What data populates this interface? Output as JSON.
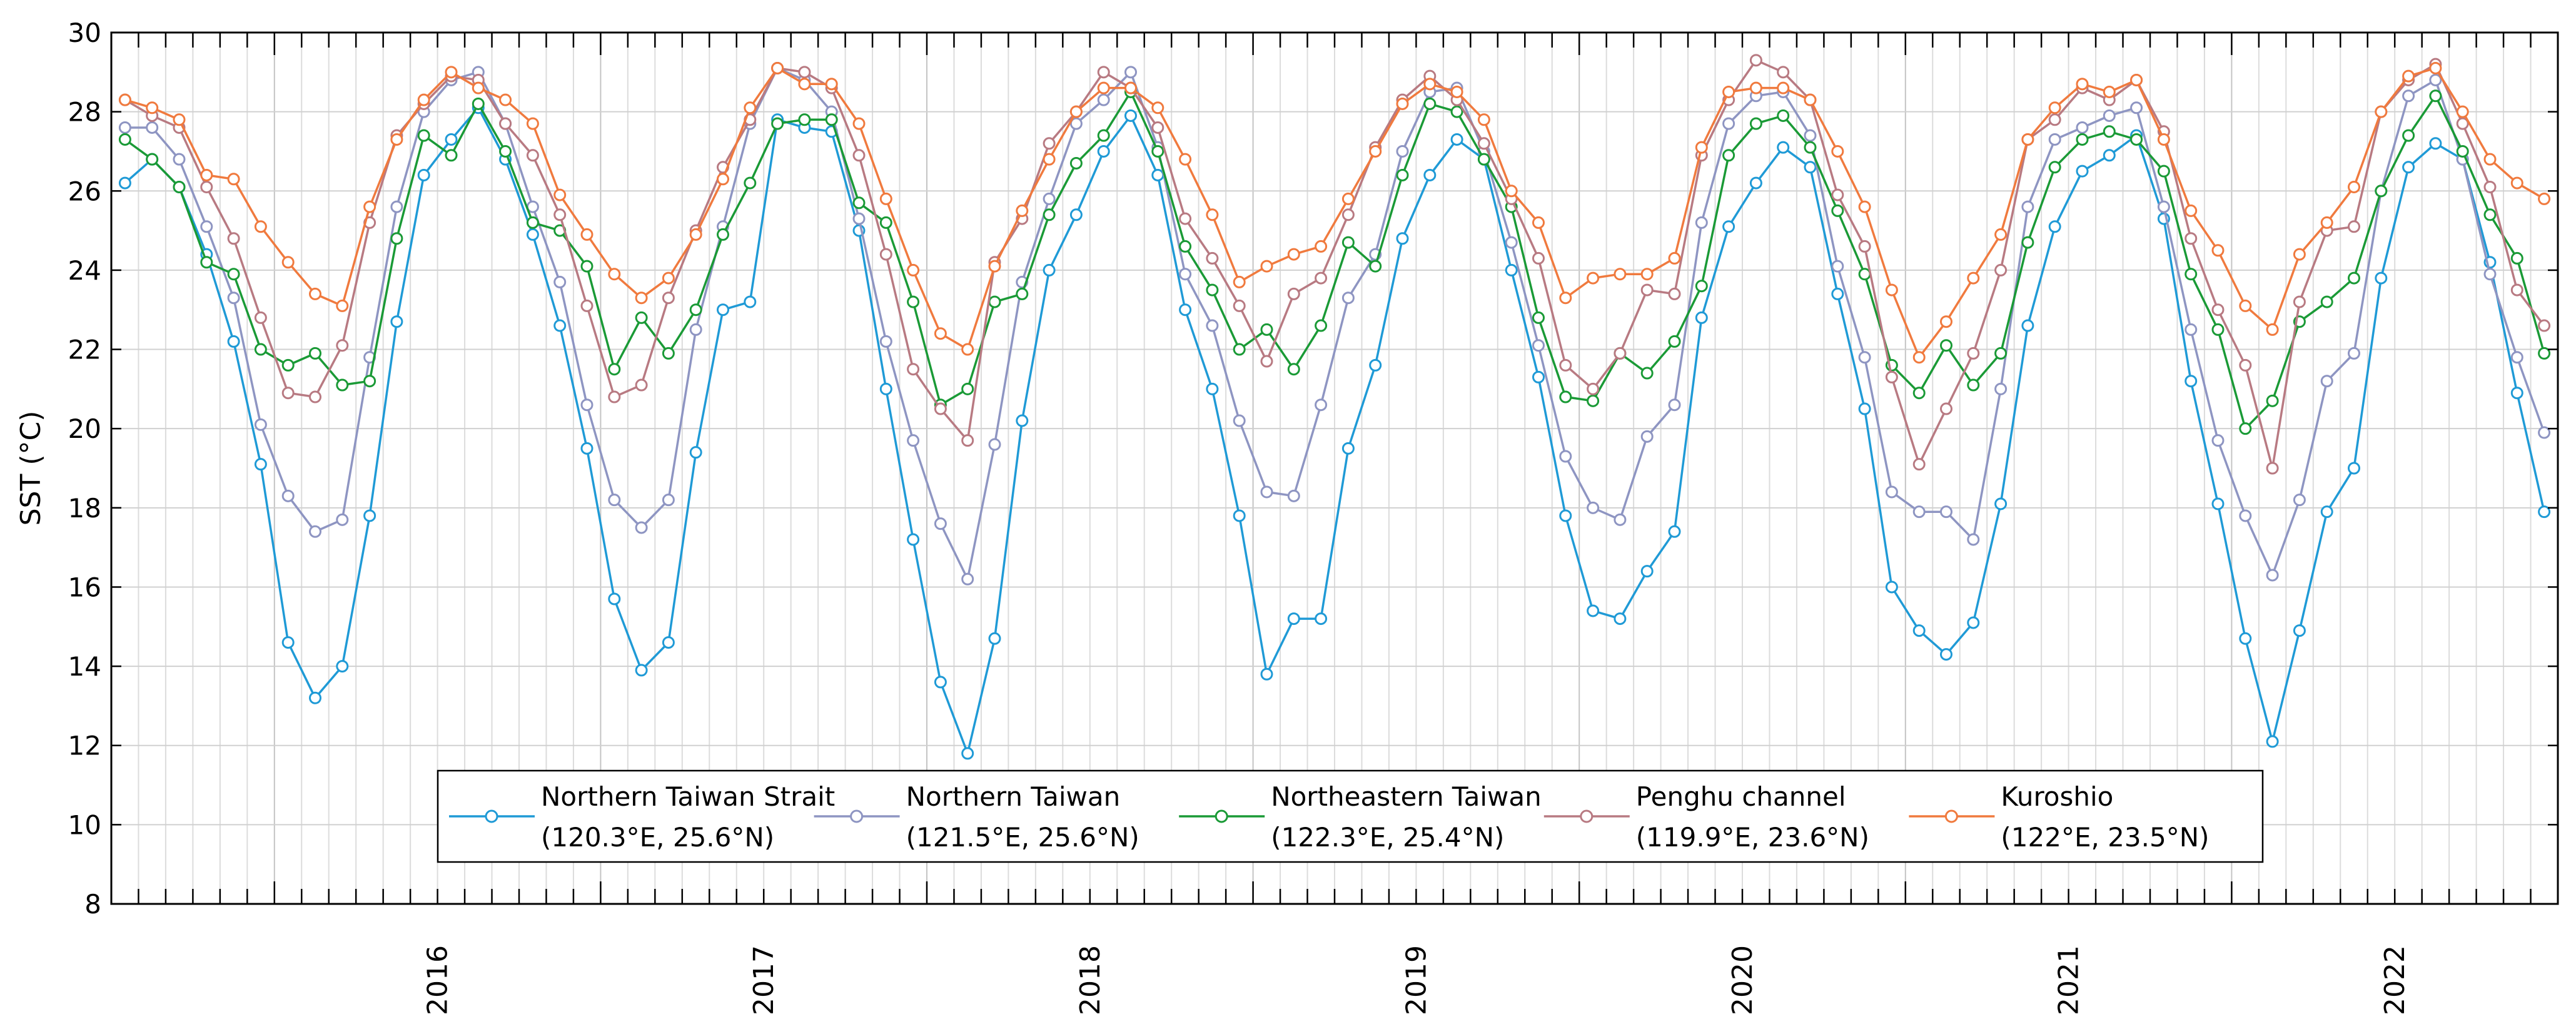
{
  "chart_data": {
    "type": "line",
    "title": "",
    "xlabel": "",
    "ylabel": "SST (°C)",
    "ylim": [
      8,
      30
    ],
    "yticks": [
      8,
      10,
      12,
      14,
      16,
      18,
      20,
      22,
      24,
      26,
      28,
      30
    ],
    "xlim": [
      2015.5,
      2023.0
    ],
    "year_labels": [
      "2016",
      "2017",
      "2018",
      "2019",
      "2020",
      "2021",
      "2022"
    ],
    "grid": true,
    "legend_position": "lower-center",
    "x": [
      2015.542,
      2015.625,
      2015.708,
      2015.792,
      2015.875,
      2015.958,
      2016.042,
      2016.125,
      2016.208,
      2016.292,
      2016.375,
      2016.458,
      2016.542,
      2016.625,
      2016.708,
      2016.792,
      2016.875,
      2016.958,
      2017.042,
      2017.125,
      2017.208,
      2017.292,
      2017.375,
      2017.458,
      2017.542,
      2017.625,
      2017.708,
      2017.792,
      2017.875,
      2017.958,
      2018.042,
      2018.125,
      2018.208,
      2018.292,
      2018.375,
      2018.458,
      2018.542,
      2018.625,
      2018.708,
      2018.792,
      2018.875,
      2018.958,
      2019.042,
      2019.125,
      2019.208,
      2019.292,
      2019.375,
      2019.458,
      2019.542,
      2019.625,
      2019.708,
      2019.792,
      2019.875,
      2019.958,
      2020.042,
      2020.125,
      2020.208,
      2020.292,
      2020.375,
      2020.458,
      2020.542,
      2020.625,
      2020.708,
      2020.792,
      2020.875,
      2020.958,
      2021.042,
      2021.125,
      2021.208,
      2021.292,
      2021.375,
      2021.458,
      2021.542,
      2021.625,
      2021.708,
      2021.792,
      2021.875,
      2021.958,
      2022.042,
      2022.125,
      2022.208,
      2022.292,
      2022.375,
      2022.458,
      2022.542,
      2022.625,
      2022.708,
      2022.792,
      2022.875,
      2022.958
    ],
    "series": [
      {
        "name": "Northern Taiwan Strait",
        "location": "(120.3°E, 25.6°N)",
        "color": "#1f9ad6",
        "values": [
          26.2,
          26.8,
          26.1,
          24.4,
          22.2,
          19.1,
          14.6,
          13.2,
          14.0,
          17.8,
          22.7,
          26.4,
          27.3,
          28.1,
          26.8,
          24.9,
          22.6,
          19.5,
          15.7,
          13.9,
          14.6,
          19.4,
          23.0,
          23.2,
          27.8,
          27.6,
          27.5,
          25.0,
          21.0,
          17.2,
          13.6,
          11.8,
          14.7,
          20.2,
          24.0,
          25.4,
          27.0,
          27.9,
          26.4,
          23.0,
          21.0,
          17.8,
          13.8,
          15.2,
          15.2,
          19.5,
          21.6,
          24.8,
          26.4,
          27.3,
          26.8,
          24.0,
          21.3,
          17.8,
          15.4,
          15.2,
          16.4,
          17.4,
          22.8,
          25.1,
          26.2,
          27.1,
          26.6,
          23.4,
          20.5,
          16.0,
          14.9,
          14.3,
          15.1,
          18.1,
          22.6,
          25.1,
          26.5,
          26.9,
          27.4,
          25.3,
          21.2,
          18.1,
          14.7,
          12.1,
          14.9,
          17.9,
          19.0,
          23.8,
          26.6,
          27.2,
          26.8,
          24.2,
          20.9,
          17.9
        ]
      },
      {
        "name": "Northern Taiwan",
        "location": "(121.5°E, 25.6°N)",
        "color": "#8e95c2",
        "values": [
          27.6,
          27.6,
          26.8,
          25.1,
          23.3,
          20.1,
          18.3,
          17.4,
          17.7,
          21.8,
          25.6,
          28.0,
          28.8,
          29.0,
          27.7,
          25.6,
          23.7,
          20.6,
          18.2,
          17.5,
          18.2,
          22.5,
          25.1,
          27.7,
          29.1,
          28.8,
          28.0,
          25.3,
          22.2,
          19.7,
          17.6,
          16.2,
          19.6,
          23.7,
          25.8,
          27.7,
          28.3,
          29.0,
          27.1,
          23.9,
          22.6,
          20.2,
          18.4,
          18.3,
          20.6,
          23.3,
          24.4,
          27.0,
          28.5,
          28.6,
          27.0,
          24.7,
          22.1,
          19.3,
          18.0,
          17.7,
          19.8,
          20.6,
          25.2,
          27.7,
          28.4,
          28.5,
          27.4,
          24.1,
          21.8,
          18.4,
          17.9,
          17.9,
          17.2,
          21.0,
          25.6,
          27.3,
          27.6,
          27.9,
          28.1,
          25.6,
          22.5,
          19.7,
          17.8,
          16.3,
          18.2,
          21.2,
          21.9,
          26.0,
          28.4,
          28.8,
          26.8,
          23.9,
          21.8,
          19.9
        ]
      },
      {
        "name": "Northeastern Taiwan",
        "location": "(122.3°E, 25.4°N)",
        "color": "#1a9a36",
        "values": [
          27.3,
          26.8,
          26.1,
          24.2,
          23.9,
          22.0,
          21.6,
          21.9,
          21.1,
          21.2,
          24.8,
          27.4,
          26.9,
          28.2,
          27.0,
          25.2,
          25.0,
          24.1,
          21.5,
          22.8,
          21.9,
          23.0,
          24.9,
          26.2,
          27.7,
          27.8,
          27.8,
          25.7,
          25.2,
          23.2,
          20.6,
          21.0,
          23.2,
          23.4,
          25.4,
          26.7,
          27.4,
          28.5,
          27.0,
          24.6,
          23.5,
          22.0,
          22.5,
          21.5,
          22.6,
          24.7,
          24.1,
          26.4,
          28.2,
          28.0,
          26.8,
          25.6,
          22.8,
          20.8,
          20.7,
          21.9,
          21.4,
          22.2,
          23.6,
          26.9,
          27.7,
          27.9,
          27.1,
          25.5,
          23.9,
          21.6,
          20.9,
          22.1,
          21.1,
          21.9,
          24.7,
          26.6,
          27.3,
          27.5,
          27.3,
          26.5,
          23.9,
          22.5,
          20.0,
          20.7,
          22.7,
          23.2,
          23.8,
          26.0,
          27.4,
          28.4,
          27.0,
          25.4,
          24.3,
          21.9
        ]
      },
      {
        "name": "Penghu channel",
        "location": "(119.9°E, 23.6°N)",
        "color": "#b87a82",
        "values": [
          28.3,
          27.9,
          27.6,
          26.1,
          24.8,
          22.8,
          20.9,
          20.8,
          22.1,
          25.2,
          27.4,
          28.2,
          28.9,
          28.8,
          27.7,
          26.9,
          25.4,
          23.1,
          20.8,
          21.1,
          23.3,
          25.0,
          26.6,
          27.8,
          29.1,
          29.0,
          28.6,
          26.9,
          24.4,
          21.5,
          20.5,
          19.7,
          24.2,
          25.3,
          27.2,
          28.0,
          29.0,
          28.6,
          27.6,
          25.3,
          24.3,
          23.1,
          21.7,
          23.4,
          23.8,
          25.4,
          27.1,
          28.3,
          28.9,
          28.3,
          27.2,
          25.8,
          24.3,
          21.6,
          21.0,
          21.9,
          23.5,
          23.4,
          26.9,
          28.3,
          29.3,
          29.0,
          28.3,
          25.9,
          24.6,
          21.3,
          19.1,
          20.5,
          21.9,
          24.0,
          27.3,
          27.8,
          28.6,
          28.3,
          28.8,
          27.5,
          24.8,
          23.0,
          21.6,
          19.0,
          23.2,
          25.0,
          25.1,
          28.0,
          28.8,
          29.2,
          27.7,
          26.1,
          23.5,
          22.6
        ]
      },
      {
        "name": "Kuroshio",
        "location": "(122°E, 23.5°N)",
        "color": "#f07a3e",
        "values": [
          28.3,
          28.1,
          27.8,
          26.4,
          26.3,
          25.1,
          24.2,
          23.4,
          23.1,
          25.6,
          27.3,
          28.3,
          29.0,
          28.6,
          28.3,
          27.7,
          25.9,
          24.9,
          23.9,
          23.3,
          23.8,
          24.9,
          26.3,
          28.1,
          29.1,
          28.7,
          28.7,
          27.7,
          25.8,
          24.0,
          22.4,
          22.0,
          24.1,
          25.5,
          26.8,
          28.0,
          28.6,
          28.6,
          28.1,
          26.8,
          25.4,
          23.7,
          24.1,
          24.4,
          24.6,
          25.8,
          27.0,
          28.2,
          28.7,
          28.5,
          27.8,
          26.0,
          25.2,
          23.3,
          23.8,
          23.9,
          23.9,
          24.3,
          27.1,
          28.5,
          28.6,
          28.6,
          28.3,
          27.0,
          25.6,
          23.5,
          21.8,
          22.7,
          23.8,
          24.9,
          27.3,
          28.1,
          28.7,
          28.5,
          28.8,
          27.3,
          25.5,
          24.5,
          23.1,
          22.5,
          24.4,
          25.2,
          26.1,
          28.0,
          28.9,
          29.1,
          28.0,
          26.8,
          26.2,
          25.8
        ]
      }
    ]
  }
}
